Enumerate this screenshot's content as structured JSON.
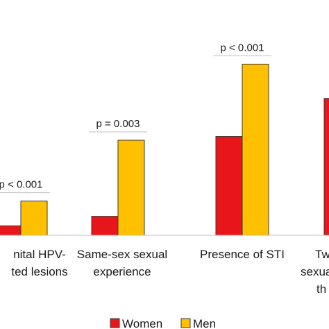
{
  "chart_data": {
    "type": "bar",
    "categories": [
      [
        "nital HPV-",
        "ted lesions"
      ],
      [
        "Same-sex sexual",
        "experience"
      ],
      [
        "Presence of STI"
      ],
      [
        "Tw",
        "sexua",
        "th"
      ]
    ],
    "series": [
      {
        "name": "Women",
        "color": "#e8161a",
        "values": [
          5,
          10,
          52,
          72
        ]
      },
      {
        "name": "Men",
        "color": "#ffc000",
        "values": [
          18,
          50,
          90,
          null
        ]
      }
    ],
    "annotations": [
      {
        "category_index": 0,
        "text": "p < 0.001"
      },
      {
        "category_index": 1,
        "text": "p = 0.003"
      },
      {
        "category_index": 2,
        "text": "p < 0.001"
      }
    ],
    "ylim": [
      0,
      100
    ],
    "grid": false,
    "legend_position": "bottom-center"
  }
}
